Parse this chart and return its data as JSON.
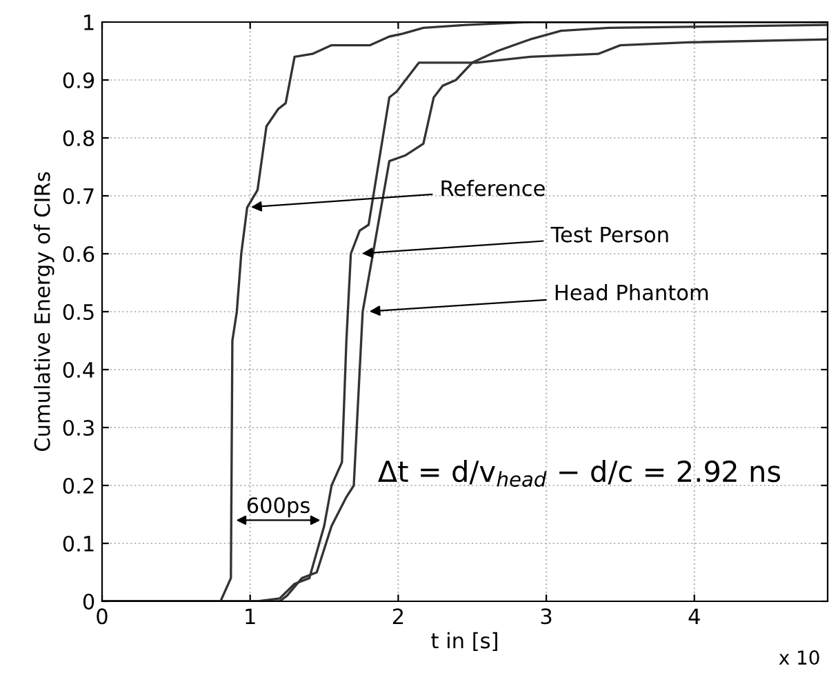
{
  "chart_data": {
    "type": "line",
    "xlabel": "t in [s]",
    "ylabel": "Cumulative Energy of CIRs",
    "xlim": [
      0,
      4.9
    ],
    "xticks": [
      0,
      1,
      2,
      3,
      4
    ],
    "ylim": [
      0,
      1
    ],
    "yticks": [
      0,
      0.1,
      0.2,
      0.3,
      0.4,
      0.5,
      0.6,
      0.7,
      0.8,
      0.9,
      1
    ],
    "grid": true,
    "marker": "none",
    "line_style": "solid",
    "legend": false,
    "series": [
      {
        "color": "#333333",
        "x": [
          0,
          0.8,
          0.87,
          0.88,
          0.91,
          0.94,
          0.98,
          1.05,
          1.11,
          1.19,
          1.24,
          1.3,
          1.42,
          1.55,
          1.81,
          1.94,
          2.03,
          2.17,
          2.46,
          2.89,
          4.9
        ],
        "values": [
          0,
          0,
          0.04,
          0.45,
          0.5,
          0.6,
          0.68,
          0.71,
          0.82,
          0.85,
          0.86,
          0.94,
          0.945,
          0.96,
          0.96,
          0.975,
          0.98,
          0.99,
          0.995,
          1,
          1
        ]
      },
      {
        "color": "#333333",
        "x": [
          0,
          1.05,
          1.2,
          1.3,
          1.4,
          1.5,
          1.55,
          1.62,
          1.65,
          1.68,
          1.74,
          1.8,
          1.94,
          1.99,
          2.14,
          2.53,
          2.89,
          3.35,
          3.5,
          3.96,
          4.9
        ],
        "values": [
          0,
          0,
          0.005,
          0.03,
          0.04,
          0.13,
          0.2,
          0.24,
          0.45,
          0.6,
          0.64,
          0.65,
          0.87,
          0.88,
          0.93,
          0.93,
          0.94,
          0.945,
          0.96,
          0.965,
          0.97
        ]
      },
      {
        "color": "#333333",
        "x": [
          0,
          1.2,
          1.25,
          1.35,
          1.45,
          1.55,
          1.65,
          1.7,
          1.75,
          1.76,
          1.94,
          2.05,
          2.17,
          2.24,
          2.3,
          2.39,
          2.5,
          2.67,
          2.89,
          3.1,
          3.42,
          4.9
        ],
        "values": [
          0,
          0,
          0.01,
          0.04,
          0.05,
          0.13,
          0.18,
          0.2,
          0.45,
          0.5,
          0.76,
          0.77,
          0.79,
          0.87,
          0.89,
          0.9,
          0.93,
          0.95,
          0.97,
          0.985,
          0.99,
          0.995
        ]
      }
    ],
    "annotations": [
      {
        "text": "Reference",
        "x": 0.98,
        "y": 0.68
      },
      {
        "text": "Test Person",
        "x": 1.73,
        "y": 0.6
      },
      {
        "text": "Head Phantom",
        "x": 1.78,
        "y": 0.5
      },
      {
        "text": "600ps",
        "x": 1.5,
        "y": 0.14
      },
      "Δt = d/v$_{head}$ − d/c = 2.92 ns",
      "x 10"
    ]
  }
}
